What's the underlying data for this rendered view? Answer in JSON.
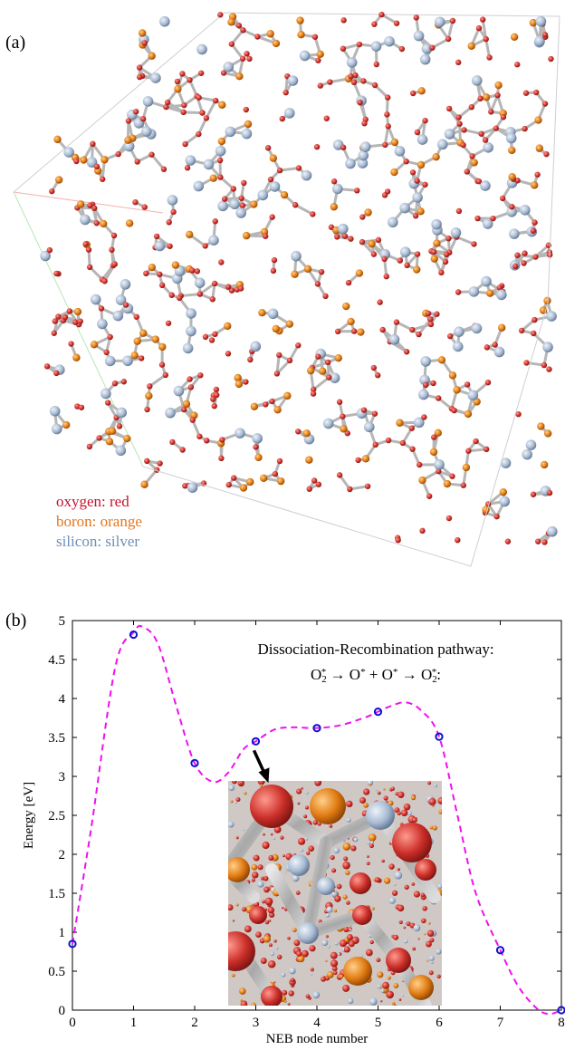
{
  "panel_a": {
    "label": "(a)",
    "legend": [
      {
        "text": "oxygen: red",
        "color": "#c8102e"
      },
      {
        "text": "boron: orange",
        "color": "#e8741a"
      },
      {
        "text": "silicon: silver",
        "color": "#6f8fb5"
      }
    ],
    "atom_colors": {
      "oxygen": "#d23a32",
      "boron": "#e8801e",
      "silicon": "#b4c2d4",
      "bond": "#b6b6b6"
    }
  },
  "panel_b": {
    "label": "(b)",
    "annotation_line1": "Dissociation-Recombination pathway:",
    "annotation_line2": {
      "parts": [
        "O",
        "2",
        "*",
        " → O",
        "*",
        " + O",
        "*",
        " → O",
        "2",
        "*",
        ":"
      ]
    },
    "inset_arrow_target_node": 3
  },
  "chart_data": {
    "type": "scatter",
    "xlabel": "NEB node number",
    "ylabel": "Energy [eV]",
    "xlim": [
      0,
      8
    ],
    "ylim": [
      0,
      5
    ],
    "xticks": [
      "0",
      "1",
      "2",
      "3",
      "4",
      "5",
      "6",
      "7",
      "8"
    ],
    "yticks": [
      "0",
      "0.5",
      "1",
      "1.5",
      "2",
      "2.5",
      "3",
      "3.5",
      "4",
      "4.5",
      "5"
    ],
    "grid": false,
    "series": [
      {
        "x": [
          0,
          1,
          2,
          3,
          4,
          5,
          6,
          7,
          8
        ],
        "y": [
          0.85,
          4.82,
          3.17,
          3.45,
          3.62,
          3.83,
          3.51,
          0.77,
          0.0
        ],
        "marker": "circle",
        "color": "#1010d0"
      }
    ],
    "curve": {
      "style": "dashed",
      "color": "#ee11ee",
      "points": [
        [
          0,
          0.85
        ],
        [
          0.3,
          2.3
        ],
        [
          0.7,
          4.4
        ],
        [
          1.0,
          4.85
        ],
        [
          1.15,
          4.92
        ],
        [
          1.4,
          4.7
        ],
        [
          1.7,
          3.9
        ],
        [
          2.0,
          3.17
        ],
        [
          2.3,
          2.93
        ],
        [
          2.55,
          3.05
        ],
        [
          2.8,
          3.35
        ],
        [
          3.0,
          3.45
        ],
        [
          3.3,
          3.6
        ],
        [
          3.6,
          3.63
        ],
        [
          4.0,
          3.62
        ],
        [
          4.4,
          3.66
        ],
        [
          4.8,
          3.76
        ],
        [
          5.0,
          3.83
        ],
        [
          5.2,
          3.9
        ],
        [
          5.45,
          3.95
        ],
        [
          5.7,
          3.85
        ],
        [
          6.0,
          3.51
        ],
        [
          6.3,
          2.5
        ],
        [
          6.6,
          1.5
        ],
        [
          7.0,
          0.77
        ],
        [
          7.3,
          0.3
        ],
        [
          7.6,
          0.02
        ],
        [
          7.8,
          -0.05
        ],
        [
          8.0,
          0.0
        ]
      ]
    }
  }
}
